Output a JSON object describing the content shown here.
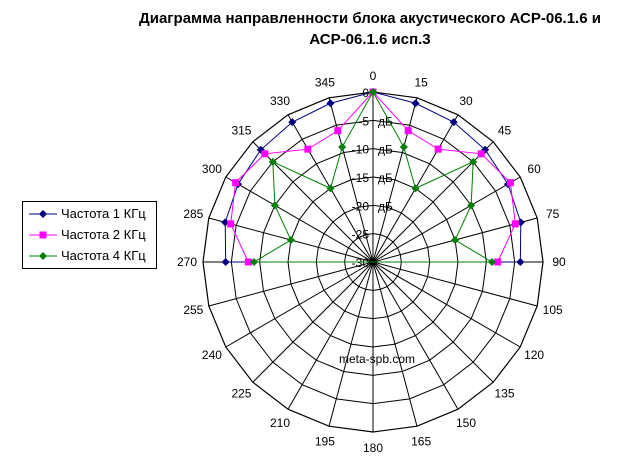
{
  "chart_data": {
    "type": "radar",
    "title": "Диаграмма направленности блока акустического АСР-06.1.6 и АСР-06.1.6 исп.3",
    "title_lines": [
      "Диаграмма направленности блока акустического АСР-06.1.6 и",
      "АСР-06.1.6 исп.3"
    ],
    "angles": [
      0,
      15,
      30,
      45,
      60,
      75,
      90,
      105,
      120,
      135,
      150,
      165,
      180,
      195,
      210,
      225,
      240,
      255,
      270,
      285,
      300,
      315,
      330,
      345
    ],
    "angle_labels": [
      "0",
      "15",
      "30",
      "45",
      "60",
      "75",
      "90",
      "105",
      "120",
      "135",
      "150",
      "165",
      "180",
      "195",
      "210",
      "225",
      "240",
      "255",
      "270",
      "285",
      "300",
      "315",
      "330",
      "345"
    ],
    "radial_range": [
      -30,
      0
    ],
    "radial_ticks": [
      {
        "value": 0,
        "label": "0"
      },
      {
        "value": -5,
        "label": "-5"
      },
      {
        "value": -10,
        "label": "-10"
      },
      {
        "value": -15,
        "label": "-15"
      },
      {
        "value": -20,
        "label": "-20"
      },
      {
        "value": -25,
        "label": "-25"
      },
      {
        "value": -30,
        "label": "-30"
      }
    ],
    "unit_labels": [
      "дБ",
      "дБ",
      "дБ",
      "дБ"
    ],
    "legend_position": "left",
    "series": [
      {
        "name": "Частота 1 КГц",
        "color": "#000080",
        "marker": "diamond",
        "angles": [
          0,
          15,
          30,
          45,
          60,
          75,
          90,
          270,
          285,
          300,
          315,
          330,
          345
        ],
        "values": [
          0,
          -1,
          -1.5,
          -2,
          -2.5,
          -3,
          -4,
          -4,
          -3,
          -2.5,
          -2,
          -1.5,
          -1
        ]
      },
      {
        "name": "Частота 2 КГц",
        "color": "#ff00ff",
        "marker": "square",
        "angles": [
          0,
          15,
          30,
          45,
          60,
          75,
          90,
          270,
          285,
          300,
          315,
          330,
          345
        ],
        "values": [
          0,
          -6,
          -7,
          -3,
          -2,
          -4,
          -8,
          -8,
          -4,
          -2,
          -3,
          -7,
          -6
        ]
      },
      {
        "name": "Частота 4 КГц",
        "color": "#008000",
        "marker": "diamond",
        "angles": [
          0,
          15,
          30,
          45,
          60,
          75,
          90,
          270,
          285,
          300,
          315,
          330,
          345
        ],
        "values": [
          0,
          -9,
          -15,
          -5,
          -10,
          -15,
          -9,
          -9,
          -15,
          -10,
          -5,
          -15,
          -9
        ]
      }
    ]
  },
  "watermark": "meta-spb.com"
}
